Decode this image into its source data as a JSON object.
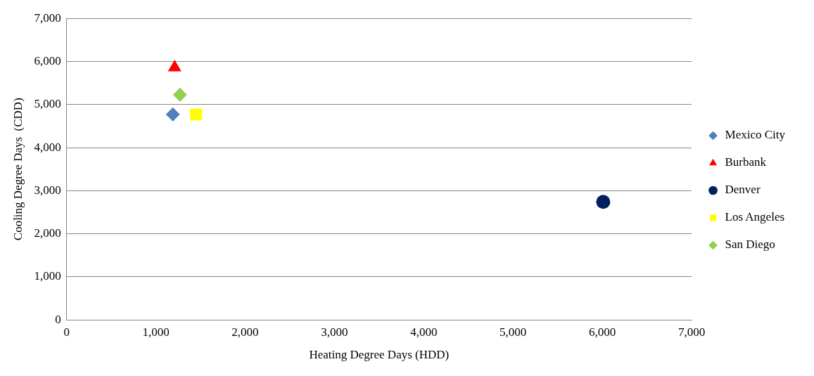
{
  "chart_data": {
    "type": "scatter",
    "xlabel": "Heating Degree Days (HDD)",
    "ylabel": "Cooling Degree Days  (CDD)",
    "xlim": [
      0,
      7000
    ],
    "xticks": [
      {
        "value": 0,
        "label": "0"
      },
      {
        "value": 1000,
        "label": "1,000"
      },
      {
        "value": 2000,
        "label": "2,000"
      },
      {
        "value": 3000,
        "label": "3,000"
      },
      {
        "value": 4000,
        "label": "4,000"
      },
      {
        "value": 5000,
        "label": "5,000"
      },
      {
        "value": 6000,
        "label": "6,000"
      },
      {
        "value": 7000,
        "label": "7,000"
      }
    ],
    "ylim": [
      0,
      7000
    ],
    "yticks": [
      {
        "value": 0,
        "label": "0"
      },
      {
        "value": 1000,
        "label": "1,000"
      },
      {
        "value": 2000,
        "label": "2,000"
      },
      {
        "value": 3000,
        "label": "3,000"
      },
      {
        "value": 4000,
        "label": "4,000"
      },
      {
        "value": 5000,
        "label": "5,000"
      },
      {
        "value": 6000,
        "label": "6,000"
      },
      {
        "value": 7000,
        "label": "7,000"
      }
    ],
    "grid": "y",
    "legend": "right",
    "series": [
      {
        "name": "Mexico City",
        "color": "#4f81bd",
        "marker": "diamond",
        "x": [
          1190
        ],
        "values": [
          4770
        ]
      },
      {
        "name": "Burbank",
        "color": "#ff0000",
        "marker": "triangle",
        "x": [
          1210
        ],
        "values": [
          5860
        ]
      },
      {
        "name": "Denver",
        "color": "#002060",
        "marker": "circle",
        "x": [
          6010
        ],
        "values": [
          2740
        ]
      },
      {
        "name": "Los Angeles",
        "color": "#ffff00",
        "marker": "square",
        "x": [
          1450
        ],
        "values": [
          4770
        ]
      },
      {
        "name": "San Diego",
        "color": "#92d050",
        "marker": "diamond",
        "x": [
          1270
        ],
        "values": [
          5230
        ]
      }
    ]
  }
}
